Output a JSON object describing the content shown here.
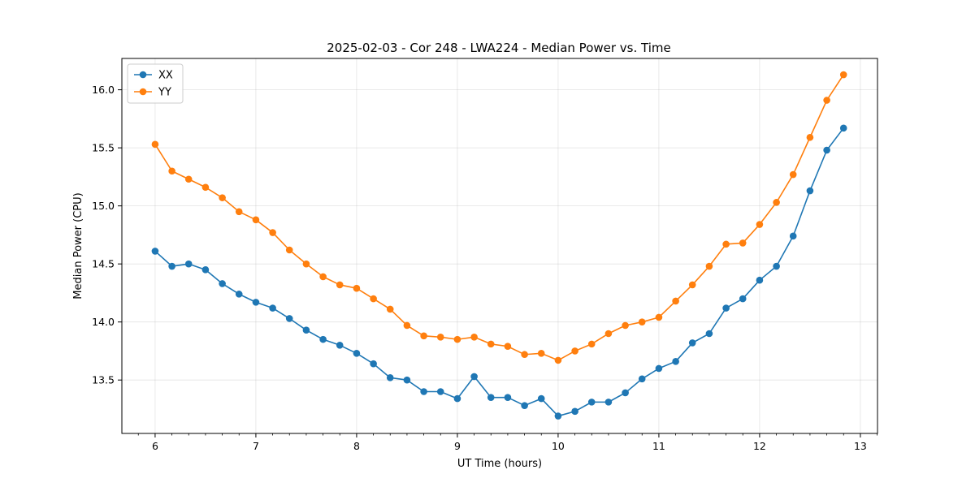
{
  "chart_data": {
    "type": "line",
    "title": "2025-02-03 - Cor 248 - LWA224 - Median Power vs. Time",
    "xlabel": "UT Time (hours)",
    "ylabel": "Median Power (CPU)",
    "xlim": [
      5.67,
      13.17
    ],
    "ylim": [
      13.04,
      16.27
    ],
    "xticks": [
      6,
      7,
      8,
      9,
      10,
      11,
      12,
      13
    ],
    "yticks": [
      13.5,
      14.0,
      14.5,
      15.0,
      15.5,
      16.0
    ],
    "ytick_labels": [
      "13.5",
      "14.0",
      "14.5",
      "15.0",
      "15.5",
      "16.0"
    ],
    "grid": true,
    "legend_position": "top-left",
    "x": [
      6.0,
      6.167,
      6.333,
      6.5,
      6.667,
      6.833,
      7.0,
      7.167,
      7.333,
      7.5,
      7.667,
      7.833,
      8.0,
      8.167,
      8.333,
      8.5,
      8.667,
      8.833,
      9.0,
      9.167,
      9.333,
      9.5,
      9.667,
      9.833,
      10.0,
      10.167,
      10.333,
      10.5,
      10.667,
      10.833,
      11.0,
      11.167,
      11.333,
      11.5,
      11.667,
      11.833,
      12.0,
      12.167,
      12.333,
      12.5,
      12.667,
      12.833
    ],
    "series": [
      {
        "name": "XX",
        "color": "#1f77b4",
        "values": [
          14.61,
          14.48,
          14.5,
          14.45,
          14.33,
          14.24,
          14.17,
          14.12,
          14.03,
          13.93,
          13.85,
          13.8,
          13.73,
          13.64,
          13.52,
          13.5,
          13.4,
          13.4,
          13.34,
          13.53,
          13.35,
          13.35,
          13.28,
          13.34,
          13.19,
          13.23,
          13.31,
          13.31,
          13.39,
          13.51,
          13.6,
          13.66,
          13.82,
          13.9,
          14.12,
          14.2,
          14.36,
          14.48,
          14.74,
          15.13,
          15.48,
          15.67
        ]
      },
      {
        "name": "YY",
        "color": "#ff7f0e",
        "values": [
          15.53,
          15.3,
          15.23,
          15.16,
          15.07,
          14.95,
          14.88,
          14.77,
          14.62,
          14.5,
          14.39,
          14.32,
          14.29,
          14.2,
          14.11,
          13.97,
          13.88,
          13.87,
          13.85,
          13.87,
          13.81,
          13.79,
          13.72,
          13.73,
          13.67,
          13.75,
          13.81,
          13.9,
          13.97,
          14.0,
          14.04,
          14.18,
          14.32,
          14.48,
          14.67,
          14.68,
          14.84,
          15.03,
          15.27,
          15.59,
          15.91,
          16.13
        ]
      }
    ]
  }
}
